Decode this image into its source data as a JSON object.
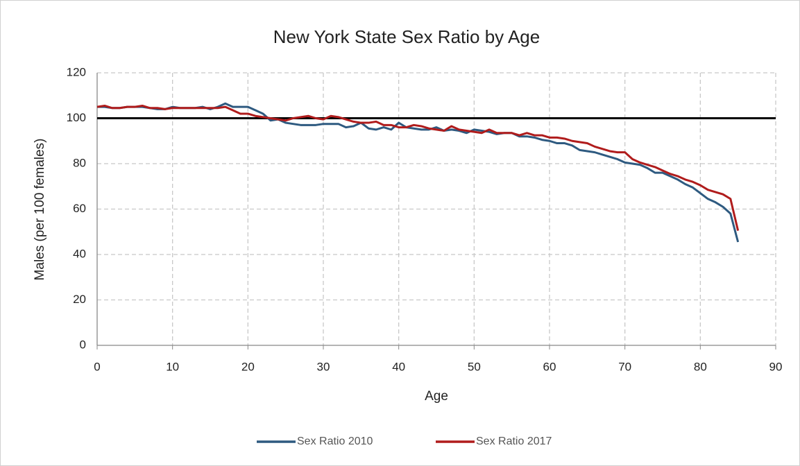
{
  "chart_data": {
    "type": "line",
    "title": "New York State Sex Ratio by Age",
    "x_label": "Age",
    "y_label": "Males (per 100 females)",
    "x": [
      0,
      1,
      2,
      3,
      4,
      5,
      6,
      7,
      8,
      9,
      10,
      11,
      12,
      13,
      14,
      15,
      16,
      17,
      18,
      19,
      20,
      21,
      22,
      23,
      24,
      25,
      26,
      27,
      28,
      29,
      30,
      31,
      32,
      33,
      34,
      35,
      36,
      37,
      38,
      39,
      40,
      41,
      42,
      43,
      44,
      45,
      46,
      47,
      48,
      49,
      50,
      51,
      52,
      53,
      54,
      55,
      56,
      57,
      58,
      59,
      60,
      61,
      62,
      63,
      64,
      65,
      66,
      67,
      68,
      69,
      70,
      71,
      72,
      73,
      74,
      75,
      76,
      77,
      78,
      79,
      80,
      81,
      82,
      83,
      84,
      85
    ],
    "series": [
      {
        "name": "Sex Ratio 2010",
        "color": "#2e5a80",
        "values": [
          105,
          105,
          104.5,
          104.5,
          105,
          105,
          105,
          104.5,
          104,
          104,
          105,
          104.5,
          104.5,
          104.5,
          105,
          104,
          105,
          106.5,
          105,
          105,
          105,
          103.5,
          102,
          99,
          99.5,
          98,
          97.5,
          97,
          97,
          97,
          97.5,
          97.5,
          97.5,
          96,
          96.5,
          98,
          95.5,
          95,
          96,
          95,
          98,
          96,
          95.5,
          95,
          95,
          96,
          94.5,
          95,
          94.5,
          93.5,
          95,
          94.5,
          94,
          93,
          93.5,
          93.5,
          92,
          92,
          91.5,
          90.5,
          90,
          89,
          89,
          88,
          86,
          85.5,
          85,
          84,
          83,
          82,
          80.5,
          80,
          79.5,
          78,
          76,
          76,
          74.5,
          73,
          71,
          69.5,
          67,
          64.5,
          63,
          61,
          58,
          45.5
        ]
      },
      {
        "name": "Sex Ratio 2017",
        "color": "#b01c1c",
        "values": [
          105,
          105.5,
          104.5,
          104.5,
          105,
          105,
          105.5,
          104.5,
          104.5,
          104,
          104.5,
          104.5,
          104.5,
          104.5,
          104.5,
          104.5,
          104.5,
          105,
          103.5,
          102,
          102,
          101,
          100.5,
          100,
          99.5,
          99,
          100,
          100.5,
          101,
          100,
          99.5,
          101,
          100.5,
          99.5,
          98.5,
          98,
          98,
          98.5,
          97,
          97,
          96,
          96,
          97,
          96.5,
          95.5,
          95,
          94.5,
          96.5,
          95,
          94.5,
          94,
          93.5,
          95,
          93.5,
          93.5,
          93.5,
          92.5,
          93.5,
          92.5,
          92.5,
          91.5,
          91.5,
          91,
          90,
          89.5,
          89,
          87.5,
          86.5,
          85.5,
          85,
          85,
          82,
          80.5,
          79.5,
          78.5,
          77,
          75.5,
          74.5,
          73,
          72,
          70.5,
          68.5,
          67.5,
          66.5,
          64.5,
          50.5
        ]
      }
    ],
    "reference_line": 100,
    "reference_color": "#000000",
    "xlim": [
      0,
      90
    ],
    "xticks": [
      0,
      10,
      20,
      30,
      40,
      50,
      60,
      70,
      80,
      90
    ],
    "ylim": [
      0,
      120
    ],
    "yticks": [
      0,
      20,
      40,
      60,
      80,
      100,
      120
    ],
    "grid": true,
    "legend": "bottom"
  }
}
